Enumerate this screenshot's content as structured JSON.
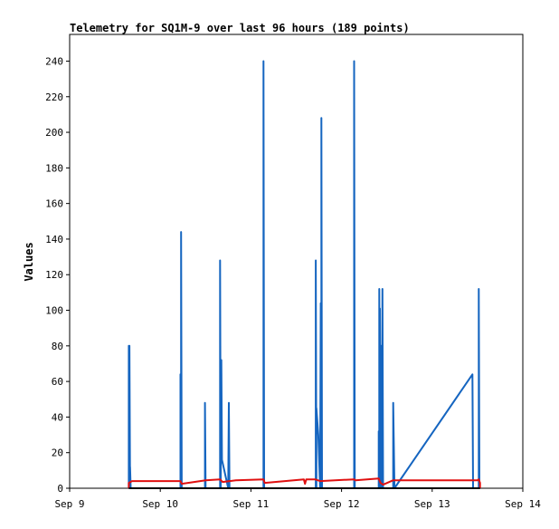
{
  "chart_data": {
    "type": "line",
    "title": "Telemetry for SQ1M-9 over last 96 hours (189 points)",
    "xlabel": "",
    "ylabel": "Values",
    "x_tick_labels": [
      "Sep 9",
      "Sep 10",
      "Sep 11",
      "Sep 12",
      "Sep 13",
      "Sep 14"
    ],
    "y_ticks": [
      0,
      20,
      40,
      60,
      80,
      100,
      120,
      140,
      160,
      180,
      200,
      220,
      240
    ],
    "xlim": [
      "Sep 9 00:00",
      "Sep 14 00:00"
    ],
    "ylim": [
      0,
      255
    ],
    "grid": false,
    "legend": "none",
    "series": [
      {
        "color": "#1565c0",
        "points": [
          [
            "Sep 9 15:40",
            0
          ],
          [
            "Sep 9 15:40",
            80
          ],
          [
            "Sep 9 15:50",
            0
          ],
          [
            "Sep 9 15:50",
            80
          ],
          [
            "Sep 9 16:00",
            0
          ],
          [
            "Sep 9 16:00",
            12
          ],
          [
            "Sep 9 16:10",
            0
          ],
          [
            "Sep 10 05:20",
            0
          ],
          [
            "Sep 10 05:20",
            64
          ],
          [
            "Sep 10 05:30",
            0
          ],
          [
            "Sep 10 05:30",
            144
          ],
          [
            "Sep 10 05:40",
            0
          ],
          [
            "Sep 10 11:50",
            0
          ],
          [
            "Sep 10 11:50",
            48
          ],
          [
            "Sep 10 12:00",
            0
          ],
          [
            "Sep 10 15:50",
            0
          ],
          [
            "Sep 10 15:50",
            128
          ],
          [
            "Sep 10 16:00",
            0
          ],
          [
            "Sep 10 16:10",
            72
          ],
          [
            "Sep 10 16:20",
            16
          ],
          [
            "Sep 10 18:00",
            0
          ],
          [
            "Sep 10 18:10",
            48
          ],
          [
            "Sep 10 18:20",
            0
          ],
          [
            "Sep 11 03:20",
            0
          ],
          [
            "Sep 11 03:20",
            240
          ],
          [
            "Sep 11 03:30",
            0
          ],
          [
            "Sep 11 17:10",
            0
          ],
          [
            "Sep 11 17:10",
            128
          ],
          [
            "Sep 11 17:20",
            0
          ],
          [
            "Sep 11 17:20",
            45
          ],
          [
            "Sep 11 17:50",
            30
          ],
          [
            "Sep 11 18:20",
            0
          ],
          [
            "Sep 11 18:30",
            104
          ],
          [
            "Sep 11 18:40",
            0
          ],
          [
            "Sep 11 18:40",
            208
          ],
          [
            "Sep 11 18:50",
            0
          ],
          [
            "Sep 12 03:20",
            0
          ],
          [
            "Sep 12 03:20",
            240
          ],
          [
            "Sep 12 03:30",
            0
          ],
          [
            "Sep 12 09:50",
            0
          ],
          [
            "Sep 12 09:50",
            32
          ],
          [
            "Sep 12 10:00",
            0
          ],
          [
            "Sep 12 10:00",
            112
          ],
          [
            "Sep 12 10:10",
            0
          ],
          [
            "Sep 12 10:10",
            101
          ],
          [
            "Sep 12 10:20",
            0
          ],
          [
            "Sep 12 10:30",
            80
          ],
          [
            "Sep 12 10:40",
            0
          ],
          [
            "Sep 12 10:50",
            112
          ],
          [
            "Sep 12 11:00",
            0
          ],
          [
            "Sep 12 13:40",
            0
          ],
          [
            "Sep 12 13:40",
            48
          ],
          [
            "Sep 12 13:50",
            24
          ],
          [
            "Sep 12 14:00",
            0
          ],
          [
            "Sep 13 10:40",
            64
          ],
          [
            "Sep 13 10:50",
            0
          ],
          [
            "Sep 13 12:20",
            0
          ],
          [
            "Sep 13 12:20",
            112
          ],
          [
            "Sep 13 12:30",
            0
          ]
        ]
      },
      {
        "color": "#e01010",
        "points": [
          [
            "Sep 9 15:40",
            0
          ],
          [
            "Sep 9 15:40",
            3
          ],
          [
            "Sep 9 16:30",
            4
          ],
          [
            "Sep 10 05:20",
            4
          ],
          [
            "Sep 10 05:40",
            2.5
          ],
          [
            "Sep 10 12:00",
            4.5
          ],
          [
            "Sep 10 15:50",
            5
          ],
          [
            "Sep 10 16:30",
            3.5
          ],
          [
            "Sep 10 20:00",
            4.5
          ],
          [
            "Sep 11 03:20",
            5
          ],
          [
            "Sep 11 03:40",
            3
          ],
          [
            "Sep 11 14:00",
            5
          ],
          [
            "Sep 11 14:20",
            2.5
          ],
          [
            "Sep 11 14:40",
            5
          ],
          [
            "Sep 11 17:00",
            5
          ],
          [
            "Sep 11 18:20",
            4
          ],
          [
            "Sep 12 03:20",
            5
          ],
          [
            "Sep 12 03:40",
            4.5
          ],
          [
            "Sep 12 09:50",
            5.5
          ],
          [
            "Sep 12 10:20",
            3
          ],
          [
            "Sep 12 11:00",
            2
          ],
          [
            "Sep 12 13:40",
            4.5
          ],
          [
            "Sep 13 12:00",
            4.5
          ],
          [
            "Sep 13 12:20",
            5
          ],
          [
            "Sep 13 12:40",
            3
          ],
          [
            "Sep 13 12:40",
            0
          ]
        ]
      },
      {
        "color": "#000000",
        "points": [
          [
            "Sep 9 15:40",
            0
          ],
          [
            "Sep 13 12:40",
            0
          ]
        ]
      }
    ]
  }
}
